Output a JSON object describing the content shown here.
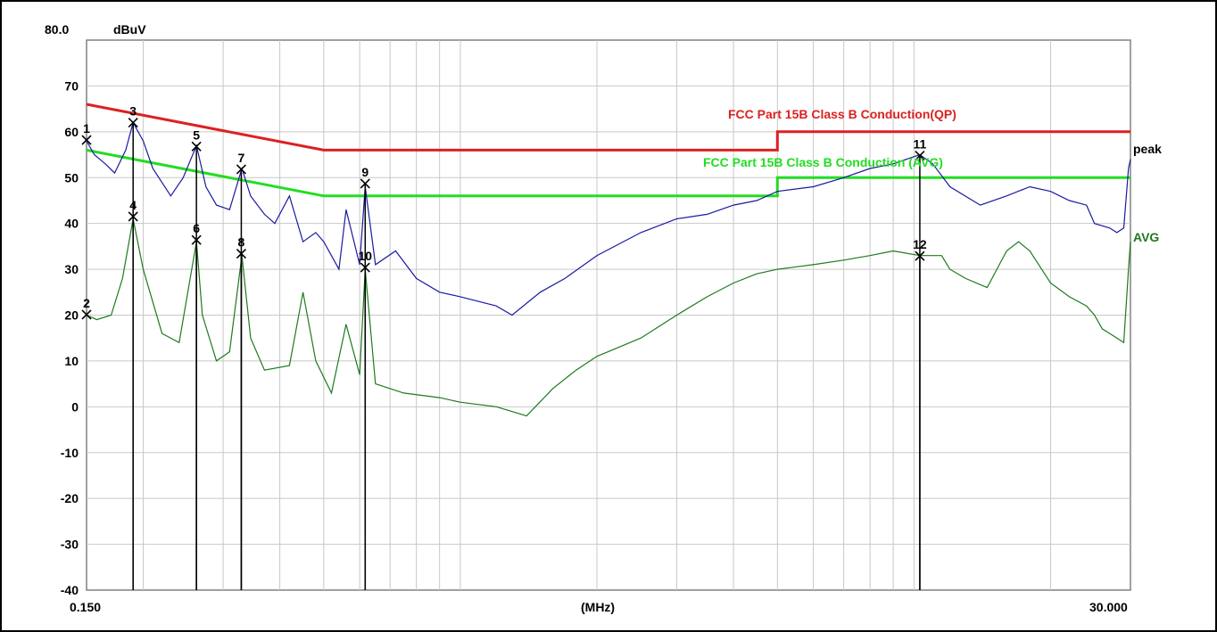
{
  "chart_data": {
    "type": "line",
    "x_scale": "log",
    "grid": true,
    "xlim": [
      0.15,
      30.0
    ],
    "ylim": [
      -40,
      80
    ],
    "ytop_label": "80.0",
    "yunit": "dBuV",
    "xunit": "(MHz)",
    "x_min_label": "0.150",
    "x_max_label": "30.000",
    "yticks": [
      70,
      60,
      50,
      40,
      30,
      20,
      10,
      0,
      -10,
      -20,
      -30,
      -40
    ],
    "limits": [
      {
        "label": "FCC Part 15B Class B Conduction(QP)",
        "color": "#dd2020",
        "points": [
          [
            0.15,
            66
          ],
          [
            0.5,
            56
          ],
          [
            5,
            56
          ],
          [
            5,
            60
          ],
          [
            30,
            60
          ]
        ]
      },
      {
        "label": "FCC Part 15B Class B Conduction (AVG)",
        "color": "#22dd22",
        "points": [
          [
            0.15,
            56
          ],
          [
            0.5,
            46
          ],
          [
            5,
            46
          ],
          [
            5,
            50
          ],
          [
            30,
            50
          ]
        ]
      }
    ],
    "series": [
      {
        "name": "peak",
        "color": "#1a1aa0",
        "points": [
          [
            0.15,
            58
          ],
          [
            0.156,
            55
          ],
          [
            0.165,
            53
          ],
          [
            0.173,
            51
          ],
          [
            0.183,
            56
          ],
          [
            0.19,
            62
          ],
          [
            0.2,
            58
          ],
          [
            0.21,
            52
          ],
          [
            0.23,
            46
          ],
          [
            0.245,
            50
          ],
          [
            0.262,
            57
          ],
          [
            0.275,
            48
          ],
          [
            0.29,
            44
          ],
          [
            0.31,
            43
          ],
          [
            0.33,
            52
          ],
          [
            0.345,
            46
          ],
          [
            0.37,
            42
          ],
          [
            0.39,
            40
          ],
          [
            0.42,
            46
          ],
          [
            0.45,
            36
          ],
          [
            0.48,
            38
          ],
          [
            0.5,
            36
          ],
          [
            0.54,
            30
          ],
          [
            0.56,
            43
          ],
          [
            0.6,
            31
          ],
          [
            0.617,
            48
          ],
          [
            0.65,
            31
          ],
          [
            0.72,
            34
          ],
          [
            0.8,
            28
          ],
          [
            0.9,
            25
          ],
          [
            1.0,
            24
          ],
          [
            1.2,
            22
          ],
          [
            1.3,
            20
          ],
          [
            1.5,
            25
          ],
          [
            1.7,
            28
          ],
          [
            2.0,
            33
          ],
          [
            2.5,
            38
          ],
          [
            3.0,
            41
          ],
          [
            3.5,
            42
          ],
          [
            4.0,
            44
          ],
          [
            4.5,
            45
          ],
          [
            5.0,
            47
          ],
          [
            6.0,
            48
          ],
          [
            7.0,
            50
          ],
          [
            8.0,
            52
          ],
          [
            9.0,
            53
          ],
          [
            10.3,
            55
          ],
          [
            11,
            53
          ],
          [
            12,
            48
          ],
          [
            14,
            44
          ],
          [
            16,
            46
          ],
          [
            18,
            48
          ],
          [
            20,
            47
          ],
          [
            22,
            45
          ],
          [
            24,
            44
          ],
          [
            25,
            40
          ],
          [
            27,
            39
          ],
          [
            28,
            38
          ],
          [
            29,
            39
          ],
          [
            29.7,
            52
          ],
          [
            30,
            54
          ]
        ]
      },
      {
        "name": "AVG",
        "color": "#1e7a1e",
        "points": [
          [
            0.15,
            20
          ],
          [
            0.158,
            19
          ],
          [
            0.17,
            20
          ],
          [
            0.18,
            28
          ],
          [
            0.19,
            41
          ],
          [
            0.2,
            30
          ],
          [
            0.22,
            16
          ],
          [
            0.24,
            14
          ],
          [
            0.262,
            36
          ],
          [
            0.27,
            20
          ],
          [
            0.29,
            10
          ],
          [
            0.31,
            12
          ],
          [
            0.33,
            33
          ],
          [
            0.345,
            15
          ],
          [
            0.37,
            8
          ],
          [
            0.42,
            9
          ],
          [
            0.45,
            25
          ],
          [
            0.48,
            10
          ],
          [
            0.52,
            3
          ],
          [
            0.56,
            18
          ],
          [
            0.6,
            7
          ],
          [
            0.617,
            30
          ],
          [
            0.65,
            5
          ],
          [
            0.75,
            3
          ],
          [
            0.9,
            2
          ],
          [
            1.0,
            1
          ],
          [
            1.2,
            0
          ],
          [
            1.4,
            -2
          ],
          [
            1.6,
            4
          ],
          [
            1.8,
            8
          ],
          [
            2.0,
            11
          ],
          [
            2.5,
            15
          ],
          [
            3.0,
            20
          ],
          [
            3.5,
            24
          ],
          [
            4.0,
            27
          ],
          [
            4.5,
            29
          ],
          [
            5.0,
            30
          ],
          [
            6.0,
            31
          ],
          [
            7.0,
            32
          ],
          [
            8.0,
            33
          ],
          [
            9.0,
            34
          ],
          [
            10.3,
            33
          ],
          [
            11.5,
            33
          ],
          [
            12,
            30
          ],
          [
            13,
            28
          ],
          [
            14.5,
            26
          ],
          [
            16,
            34
          ],
          [
            17,
            36
          ],
          [
            18,
            34
          ],
          [
            20,
            27
          ],
          [
            22,
            24
          ],
          [
            24,
            22
          ],
          [
            25,
            20
          ],
          [
            26,
            17
          ],
          [
            27,
            16
          ],
          [
            28,
            15
          ],
          [
            29,
            14
          ],
          [
            29.7,
            30
          ],
          [
            30,
            36
          ]
        ]
      }
    ],
    "markers": [
      {
        "label": "1",
        "f": 0.15,
        "level": 58.2
      },
      {
        "label": "2",
        "f": 0.15,
        "level": 20.1
      },
      {
        "label": "3",
        "f": 0.19,
        "level": 62.0
      },
      {
        "label": "4",
        "f": 0.19,
        "level": 41.5
      },
      {
        "label": "5",
        "f": 0.262,
        "level": 56.8
      },
      {
        "label": "6",
        "f": 0.262,
        "level": 36.4
      },
      {
        "label": "7",
        "f": 0.329,
        "level": 51.8
      },
      {
        "label": "8",
        "f": 0.329,
        "level": 33.4
      },
      {
        "label": "9",
        "f": 0.617,
        "level": 48.7
      },
      {
        "label": "10",
        "f": 0.617,
        "level": 30.4
      },
      {
        "label": "11",
        "f": 10.3,
        "level": 54.8
      },
      {
        "label": "12",
        "f": 10.3,
        "level": 32.9
      }
    ]
  }
}
